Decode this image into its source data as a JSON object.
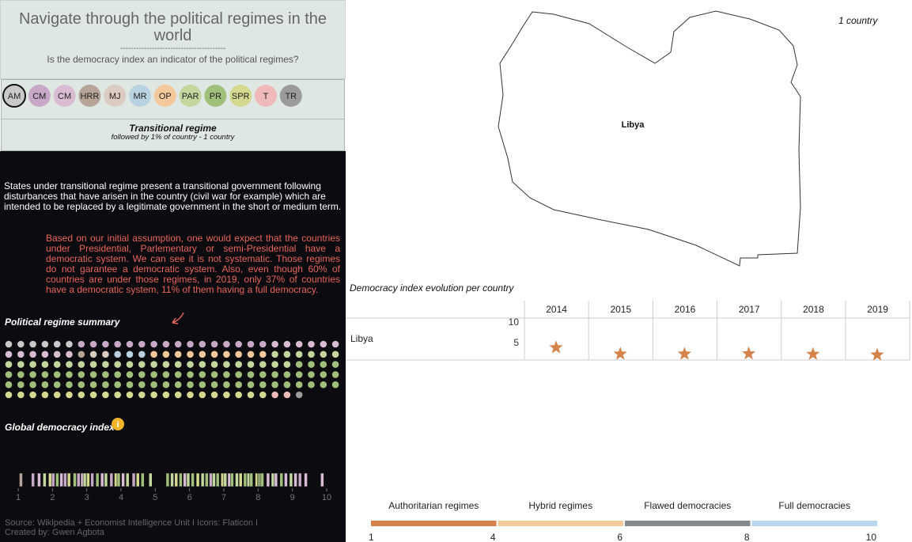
{
  "header": {
    "title": "Navigate through the political regimes in the world",
    "divider": "----------------------------------------",
    "subtitle": "Is the democracy index an indicator of the political regimes?"
  },
  "regimes": [
    {
      "code": "AM",
      "color": "#c9c9c9"
    },
    {
      "code": "CM",
      "color": "#c7a8c6"
    },
    {
      "code": "CM",
      "color": "#d9bcd4"
    },
    {
      "code": "HRR",
      "color": "#b5a497"
    },
    {
      "code": "MJ",
      "color": "#dccbc0"
    },
    {
      "code": "MR",
      "color": "#b9d2e2"
    },
    {
      "code": "OP",
      "color": "#f3c99b"
    },
    {
      "code": "PAR",
      "color": "#c3d69d"
    },
    {
      "code": "PR",
      "color": "#9fbf7b"
    },
    {
      "code": "SPR",
      "color": "#d5d88f"
    },
    {
      "code": "T",
      "color": "#f0baba"
    },
    {
      "code": "TR",
      "color": "#9b9b9b"
    }
  ],
  "selected": {
    "title": "Transitional regime",
    "caption": "followed by 1% of country - 1 country"
  },
  "description": "States under transitional regime present a transitional government following disturbances that have arisen in the country (civil war for example) which are intended to be replaced by a legitimate government in the short or medium term.",
  "note": "Based on our initial assumption, one would expect that the countries under Presidential, Parlementary or semi-Presidential have a democratic system. We can see it is not systematic. Those regimes do not garantee a democratic system. Also, even though 60% of countries are under those regimes, in 2019, only 37% of countries have a democratic system, 11% of them having a full democracy.",
  "summary": {
    "title": "Political regime summary",
    "counts": [
      6,
      16,
      12,
      1,
      2,
      3,
      10,
      30,
      60,
      22,
      2,
      1
    ]
  },
  "global_index": {
    "title": "Global democracy index",
    "xlim": [
      1,
      10
    ],
    "xticks": [
      1,
      2,
      3,
      4,
      5,
      6,
      7,
      8,
      9,
      10
    ],
    "values": [
      1.08,
      1.43,
      1.61,
      1.77,
      1.93,
      2.02,
      2.14,
      2.26,
      2.37,
      2.48,
      2.65,
      2.76,
      2.87,
      2.94,
      3.04,
      3.16,
      3.31,
      3.45,
      3.56,
      3.72,
      3.85,
      3.93,
      4.06,
      4.19,
      4.37,
      4.49,
      4.63,
      4.86,
      5.36,
      5.49,
      5.61,
      5.74,
      5.86,
      5.96,
      6.09,
      6.24,
      6.38,
      6.5,
      6.62,
      6.71,
      6.82,
      6.96,
      7.04,
      7.16,
      7.24,
      7.38,
      7.49,
      7.62,
      7.72,
      7.8,
      7.96,
      8.03,
      8.08,
      8.12,
      8.29,
      8.43,
      8.52,
      8.68,
      8.81,
      8.96,
      9.09,
      9.22,
      9.39,
      9.87
    ],
    "regimes": [
      3,
      1,
      2,
      7,
      9,
      1,
      8,
      2,
      1,
      9,
      8,
      1,
      2,
      7,
      9,
      1,
      8,
      2,
      7,
      1,
      9,
      8,
      2,
      7,
      1,
      9,
      8,
      7,
      8,
      7,
      9,
      8,
      2,
      7,
      8,
      9,
      7,
      8,
      1,
      7,
      8,
      9,
      7,
      2,
      8,
      7,
      9,
      8,
      7,
      8,
      9,
      8,
      7,
      8,
      2,
      7,
      2,
      8,
      2,
      7,
      2,
      1,
      2,
      2
    ]
  },
  "source": {
    "line1": "Source: Wikipedia + Economist Intelligence Unit I Icons: Flaticon I",
    "line2": "Created by: Gwen Agbota"
  },
  "map": {
    "country_count": "1 country",
    "label": "Libya"
  },
  "chart_data": {
    "type": "star",
    "title": "Democracy index evolution per country",
    "categories": [
      "2014",
      "2015",
      "2016",
      "2017",
      "2018",
      "2019"
    ],
    "series": [
      {
        "name": "Libya",
        "color": "#d4844b",
        "values": [
          3.8,
          2.25,
          2.25,
          2.32,
          2.19,
          2.02
        ]
      }
    ],
    "ylim": [
      0,
      10
    ],
    "yticks": [
      5,
      10
    ]
  },
  "legend": {
    "categories": [
      "Authoritarian regimes",
      "Hybrid regimes",
      "Flawed democracies",
      "Full democracies"
    ],
    "colors": [
      "#d4804a",
      "#f3ca9b",
      "#858a90",
      "#b9d6ee"
    ],
    "breaks": [
      1,
      4,
      6,
      8,
      10
    ]
  }
}
